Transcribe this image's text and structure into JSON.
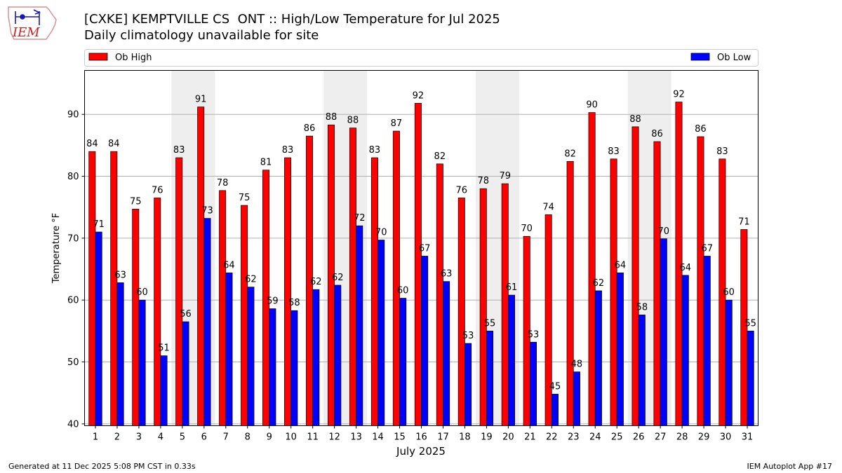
{
  "logo": {
    "text": "IEM"
  },
  "header": {
    "title": "[CXKE] KEMPTVILLE CS  ONT :: High/Low Temperature for Jul 2025",
    "subtitle": "Daily climatology unavailable for site"
  },
  "footer": {
    "generated": "Generated at 11 Dec 2025 5:08 PM CST in 0.33s",
    "app": "IEM Autoplot App #17"
  },
  "colors": {
    "high": "#ff0000",
    "low": "#0000ff",
    "weekend_band": "#eeeeee",
    "grid": "#b0b0b0"
  },
  "chart_data": {
    "type": "bar",
    "title": "[CXKE] KEMPTVILLE CS  ONT :: High/Low Temperature for Jul 2025",
    "subtitle": "Daily climatology unavailable for site",
    "xlabel": "July 2025",
    "ylabel": "Temperature °F",
    "ylim": [
      39.7,
      97.1
    ],
    "yticks": [
      40,
      50,
      60,
      70,
      80,
      90
    ],
    "grid": true,
    "legend_position": "top",
    "categories": [
      "1",
      "2",
      "3",
      "4",
      "5",
      "6",
      "7",
      "8",
      "9",
      "10",
      "11",
      "12",
      "13",
      "14",
      "15",
      "16",
      "17",
      "18",
      "19",
      "20",
      "21",
      "22",
      "23",
      "24",
      "25",
      "26",
      "27",
      "28",
      "29",
      "30",
      "31"
    ],
    "highlight_bands": [
      [
        5,
        6
      ],
      [
        12,
        13
      ],
      [
        19,
        20
      ],
      [
        26,
        27
      ]
    ],
    "series": [
      {
        "name": "Ob High",
        "values": [
          84.0,
          84.0,
          74.7,
          76.5,
          83.0,
          91.2,
          77.7,
          75.3,
          81.0,
          83.0,
          86.5,
          88.3,
          87.8,
          83.0,
          87.3,
          91.8,
          82.0,
          76.5,
          78.0,
          78.8,
          70.3,
          73.8,
          82.4,
          90.3,
          82.8,
          88.0,
          85.6,
          92.0,
          86.4,
          82.8,
          71.4
        ],
        "labels": [
          "84",
          "84",
          "75",
          "76",
          "83",
          "91",
          "78",
          "75",
          "81",
          "83",
          "86",
          "88",
          "88",
          "83",
          "87",
          "92",
          "82",
          "76",
          "78",
          "79",
          "70",
          "74",
          "82",
          "90",
          "83",
          "88",
          "86",
          "92",
          "86",
          "83",
          "71"
        ]
      },
      {
        "name": "Ob Low",
        "values": [
          71.0,
          62.8,
          60.0,
          51.0,
          56.5,
          73.2,
          64.4,
          62.1,
          58.6,
          58.3,
          61.7,
          62.4,
          72.0,
          69.7,
          60.3,
          67.1,
          63.0,
          53.0,
          55.0,
          60.8,
          53.2,
          44.8,
          48.4,
          61.5,
          64.4,
          57.6,
          69.9,
          64.0,
          67.1,
          60.0,
          55.0
        ],
        "labels": [
          "71",
          "63",
          "60",
          "51",
          "56",
          "73",
          "64",
          "62",
          "59",
          "58",
          "62",
          "62",
          "72",
          "70",
          "60",
          "67",
          "63",
          "53",
          "55",
          "61",
          "53",
          "45",
          "48",
          "62",
          "64",
          "58",
          "70",
          "64",
          "67",
          "60",
          "55"
        ]
      }
    ]
  }
}
